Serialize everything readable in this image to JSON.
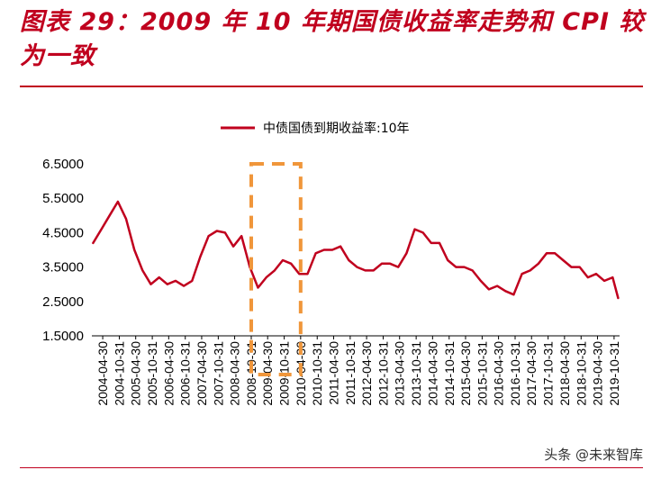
{
  "title": "图表 29：2009 年 10 年期国债收益率走势和 CPI 较为一致",
  "watermark": "头条 @未来智库",
  "colors": {
    "series": "#c0001e",
    "highlight": "#f0963a",
    "title": "#c0001e"
  },
  "chart_data": {
    "type": "line",
    "title": "",
    "xlabel": "",
    "ylabel": "",
    "ylim": [
      1.5,
      6.5
    ],
    "yticks": [
      "6.5000",
      "5.5000",
      "4.5000",
      "3.5000",
      "2.5000",
      "1.5000"
    ],
    "xticks": [
      "2004-04-30",
      "2004-10-31",
      "2005-04-30",
      "2005-10-31",
      "2006-04-30",
      "2006-10-31",
      "2007-04-30",
      "2007-10-31",
      "2008-04-30",
      "2008-10-31",
      "2009-04-30",
      "2009-10-31",
      "2010-04-30",
      "2010-10-31",
      "2011-04-30",
      "2011-10-31",
      "2012-04-30",
      "2012-10-31",
      "2013-04-30",
      "2013-10-31",
      "2014-04-30",
      "2014-10-31",
      "2015-04-30",
      "2015-10-31",
      "2016-04-30",
      "2016-10-31",
      "2017-04-30",
      "2017-10-31",
      "2018-04-30",
      "2018-10-31",
      "2019-04-30",
      "2019-10-31"
    ],
    "legend": {
      "position": "top-center",
      "label": "中债国债到期收益率:10年"
    },
    "highlight_range": [
      "2008-10-31",
      "2010-04-30"
    ],
    "series": [
      {
        "name": "中债国债到期收益率:10年",
        "x": [
          "2004-01",
          "2004-04",
          "2004-07",
          "2004-10",
          "2005-01",
          "2005-04",
          "2005-07",
          "2005-10",
          "2006-01",
          "2006-04",
          "2006-07",
          "2006-10",
          "2007-01",
          "2007-04",
          "2007-07",
          "2007-10",
          "2008-01",
          "2008-04",
          "2008-07",
          "2008-10",
          "2009-01",
          "2009-04",
          "2009-07",
          "2009-10",
          "2010-01",
          "2010-04",
          "2010-07",
          "2010-10",
          "2011-01",
          "2011-04",
          "2011-07",
          "2011-10",
          "2012-01",
          "2012-04",
          "2012-07",
          "2012-10",
          "2013-01",
          "2013-04",
          "2013-07",
          "2013-10",
          "2014-01",
          "2014-04",
          "2014-07",
          "2014-10",
          "2015-01",
          "2015-04",
          "2015-07",
          "2015-10",
          "2016-01",
          "2016-04",
          "2016-07",
          "2016-10",
          "2017-01",
          "2017-04",
          "2017-07",
          "2017-10",
          "2018-01",
          "2018-04",
          "2018-07",
          "2018-10",
          "2019-01",
          "2019-04",
          "2019-07",
          "2019-10",
          "2019-12"
        ],
        "values": [
          4.2,
          4.6,
          5.0,
          5.4,
          4.9,
          4.0,
          3.4,
          3.0,
          3.2,
          3.0,
          3.1,
          2.95,
          3.1,
          3.8,
          4.4,
          4.55,
          4.5,
          4.1,
          4.4,
          3.5,
          2.9,
          3.2,
          3.4,
          3.7,
          3.6,
          3.3,
          3.3,
          3.9,
          4.0,
          4.0,
          4.1,
          3.7,
          3.5,
          3.4,
          3.4,
          3.6,
          3.6,
          3.5,
          3.9,
          4.6,
          4.5,
          4.2,
          4.2,
          3.7,
          3.5,
          3.5,
          3.4,
          3.1,
          2.85,
          2.95,
          2.8,
          2.7,
          3.3,
          3.4,
          3.6,
          3.9,
          3.9,
          3.7,
          3.5,
          3.5,
          3.2,
          3.3,
          3.1,
          3.2,
          2.6
        ]
      }
    ]
  }
}
